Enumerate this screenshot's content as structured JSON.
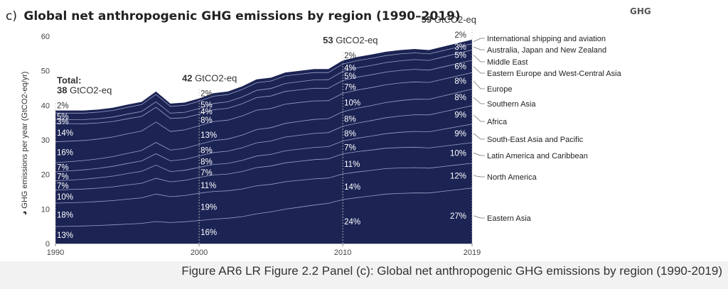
{
  "figure": {
    "panel_letter": "c)",
    "title": "Global net anthropogenic GHG emissions by region (1990–2019)",
    "ghg_tag": "GHG",
    "caption": "Figure AR6 LR Figure 2.2 Panel (c): Global net anthropogenic GHG emissions by region (1990-2019)"
  },
  "chart_data": {
    "type": "area",
    "title": "Global net anthropogenic GHG emissions by region (1990–2019)",
    "ylabel": "GHG emissions per year (GtCO2-eq/yr)",
    "ylim": [
      0,
      60
    ],
    "yticks": [
      0,
      10,
      20,
      30,
      40,
      50,
      60
    ],
    "xticks": [
      1990,
      2000,
      2010,
      2019
    ],
    "x": [
      1990,
      1991,
      1992,
      1993,
      1994,
      1995,
      1996,
      1997,
      1998,
      1999,
      2000,
      2001,
      2002,
      2003,
      2004,
      2005,
      2006,
      2007,
      2008,
      2009,
      2010,
      2011,
      2012,
      2013,
      2014,
      2015,
      2016,
      2017,
      2018,
      2019
    ],
    "totals": [
      38.5,
      38.5,
      38.5,
      38.8,
      39.3,
      40.2,
      41,
      44,
      40.5,
      40.8,
      42,
      43.5,
      44,
      45.5,
      47.5,
      48,
      49.5,
      50,
      50.5,
      50.5,
      53,
      54,
      54.7,
      55.5,
      56,
      56.3,
      56,
      57,
      58,
      59
    ],
    "stack_order": "bottom-to-top",
    "series": [
      {
        "name": "Eastern Asia",
        "shares": [
          [
            1990,
            0.13
          ],
          [
            1997,
            0.15
          ],
          [
            2000,
            0.16
          ],
          [
            2003,
            0.17
          ],
          [
            2006,
            0.2
          ],
          [
            2010,
            0.24
          ],
          [
            2013,
            0.26
          ],
          [
            2016,
            0.26
          ],
          [
            2019,
            0.27
          ]
        ]
      },
      {
        "name": "North America",
        "shares": [
          [
            1990,
            0.18
          ],
          [
            2000,
            0.19
          ],
          [
            2004,
            0.17
          ],
          [
            2010,
            0.14
          ],
          [
            2015,
            0.13
          ],
          [
            2019,
            0.12
          ]
        ]
      },
      {
        "name": "Latin America and Caribbean",
        "shares": [
          [
            1990,
            0.1
          ],
          [
            2000,
            0.11
          ],
          [
            2010,
            0.11
          ],
          [
            2015,
            0.105
          ],
          [
            2019,
            0.1
          ]
        ]
      },
      {
        "name": "South-East Asia and Pacific",
        "shares": [
          [
            1990,
            0.07
          ],
          [
            1997,
            0.09
          ],
          [
            1998,
            0.075
          ],
          [
            2000,
            0.07
          ],
          [
            2010,
            0.07
          ],
          [
            2019,
            0.09
          ]
        ]
      },
      {
        "name": "Africa",
        "shares": [
          [
            1990,
            0.07
          ],
          [
            2000,
            0.08
          ],
          [
            2010,
            0.08
          ],
          [
            2019,
            0.09
          ]
        ]
      },
      {
        "name": "Southern Asia",
        "shares": [
          [
            1990,
            0.07
          ],
          [
            2000,
            0.08
          ],
          [
            2010,
            0.08
          ],
          [
            2019,
            0.08
          ]
        ]
      },
      {
        "name": "Europe",
        "shares": [
          [
            1990,
            0.16
          ],
          [
            2000,
            0.13
          ],
          [
            2010,
            0.1
          ],
          [
            2019,
            0.08
          ]
        ]
      },
      {
        "name": "Eastern Europe and West-Central Asia",
        "shares": [
          [
            1990,
            0.14
          ],
          [
            1998,
            0.095
          ],
          [
            2000,
            0.08
          ],
          [
            2010,
            0.07
          ],
          [
            2019,
            0.06
          ]
        ]
      },
      {
        "name": "Middle East",
        "shares": [
          [
            1990,
            0.03
          ],
          [
            2000,
            0.04
          ],
          [
            2010,
            0.05
          ],
          [
            2019,
            0.05
          ]
        ]
      },
      {
        "name": "Australia, Japan and New Zealand",
        "shares": [
          [
            1990,
            0.05
          ],
          [
            2000,
            0.05
          ],
          [
            2010,
            0.04
          ],
          [
            2019,
            0.03
          ]
        ]
      },
      {
        "name": "International shipping and aviation",
        "shares": [
          [
            1990,
            0.02
          ],
          [
            2000,
            0.02
          ],
          [
            2010,
            0.02
          ],
          [
            2019,
            0.02
          ]
        ]
      }
    ],
    "value_labels": {
      "1990": [
        "13%",
        "18%",
        "10%",
        "7%",
        "7%",
        "7%",
        "16%",
        "14%",
        "3%",
        "5%",
        "2%"
      ],
      "2000": [
        "16%",
        "19%",
        "11%",
        "7%",
        "8%",
        "8%",
        "13%",
        "8%",
        "4%",
        "5%",
        "2%"
      ],
      "2010": [
        "24%",
        "14%",
        "11%",
        "7%",
        "8%",
        "8%",
        "10%",
        "7%",
        "5%",
        "4%",
        "2%"
      ],
      "2019": [
        "27%",
        "12%",
        "10%",
        "9%",
        "9%",
        "8%",
        "8%",
        "6%",
        "5%",
        "3%",
        "2%"
      ]
    },
    "annotations": [
      {
        "year": 1990,
        "lines": [
          "Total:",
          "38 GtCO2-eq"
        ]
      },
      {
        "year": 2000,
        "lines": [
          "42 GtCO2-eq"
        ]
      },
      {
        "year": 2010,
        "lines": [
          "53 GtCO2-eq"
        ]
      },
      {
        "year": 2019,
        "lines": [
          "59 GtCO2-eq"
        ]
      }
    ],
    "colors": {
      "area": "#1c2454",
      "boundary": "#9aa0c4",
      "leader": "#666666"
    }
  }
}
